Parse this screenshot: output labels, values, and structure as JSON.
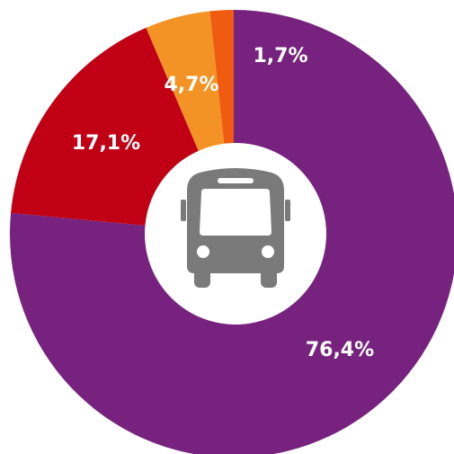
{
  "chart_data": {
    "type": "donut",
    "categories": [
      null,
      null,
      null,
      null
    ],
    "values": [
      76.4,
      17.1,
      4.7,
      1.7
    ],
    "value_labels": [
      "76,4%",
      "17,1%",
      "4,7%",
      "1,7%"
    ],
    "colors": [
      "#77227f",
      "#c10016",
      "#f39325",
      "#ef5b10"
    ]
  }
}
